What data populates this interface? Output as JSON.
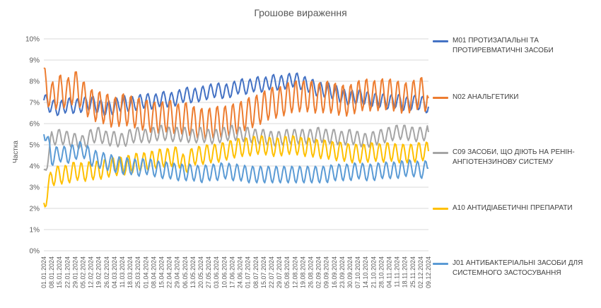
{
  "chart_data": {
    "type": "line",
    "title": "Грошове вираження",
    "xlabel": "",
    "ylabel": "Частка",
    "ylim": [
      0,
      10
    ],
    "y_ticks": [
      "0%",
      "1%",
      "2%",
      "3%",
      "4%",
      "5%",
      "6%",
      "7%",
      "8%",
      "9%",
      "10%"
    ],
    "x_tick_labels": [
      "01.01.2024",
      "08.01.2024",
      "15.01.2024",
      "22.01.2024",
      "29.01.2024",
      "05.02.2024",
      "12.02.2024",
      "19.02.2024",
      "26.02.2024",
      "04.03.2024",
      "11.03.2024",
      "18.03.2024",
      "25.03.2024",
      "01.04.2024",
      "08.04.2024",
      "15.04.2024",
      "22.04.2024",
      "29.04.2024",
      "06.05.2024",
      "13.05.2024",
      "20.05.2024",
      "27.05.2024",
      "03.06.2024",
      "10.06.2024",
      "17.06.2024",
      "24.06.2024",
      "01.07.2024",
      "08.07.2024",
      "15.07.2024",
      "22.07.2024",
      "29.07.2024",
      "05.08.2024",
      "12.08.2024",
      "19.08.2024",
      "26.08.2024",
      "02.09.2024",
      "09.09.2024",
      "16.09.2024",
      "23.09.2024",
      "30.09.2024",
      "07.10.2024",
      "14.10.2024",
      "21.10.2024",
      "28.10.2024",
      "04.11.2024",
      "11.11.2024",
      "18.11.2024",
      "25.11.2024",
      "02.12.2024",
      "09.12.2024"
    ],
    "grid": true,
    "legend_position": "right",
    "series": [
      {
        "name": "M01 ПРОТИЗАПАЛЬНІ ТА ПРОТИРЕВМАТИЧНІ ЗАСОБИ",
        "color": "#4472C4",
        "values": [
          7.1,
          6.8,
          6.7,
          6.9,
          6.8,
          6.9,
          7.0,
          6.8,
          6.7,
          6.8,
          7.0,
          6.9,
          7.0,
          7.1,
          7.0,
          7.2,
          7.1,
          7.2,
          7.4,
          7.3,
          7.4,
          7.5,
          7.6,
          7.5,
          7.6,
          7.8,
          7.7,
          7.9,
          7.8,
          8.0,
          7.9,
          8.0,
          8.1,
          7.9,
          7.8,
          7.6,
          7.6,
          7.5,
          7.3,
          7.2,
          7.3,
          7.2,
          7.1,
          7.1,
          7.0,
          7.1,
          6.9,
          7.0,
          7.0,
          6.8
        ]
      },
      {
        "name": "N02 АНАЛЬГЕТИКИ",
        "color": "#ED7D31",
        "values": [
          8.0,
          7.2,
          7.6,
          7.4,
          7.8,
          7.3,
          6.9,
          6.8,
          6.7,
          6.5,
          6.7,
          6.6,
          6.5,
          6.4,
          6.3,
          6.3,
          6.4,
          6.2,
          6.3,
          6.1,
          6.0,
          6.0,
          6.1,
          6.1,
          6.2,
          6.3,
          6.5,
          6.6,
          6.8,
          7.0,
          7.0,
          7.2,
          7.3,
          7.3,
          7.3,
          7.2,
          7.3,
          7.2,
          7.1,
          7.1,
          7.3,
          7.4,
          7.3,
          7.4,
          7.4,
          7.3,
          7.2,
          7.3,
          7.5,
          7.2
        ]
      },
      {
        "name": "C09 ЗАСОБИ, ЩО ДІЮТЬ НА РЕНІН-АНГІОТЕНЗИНОВУ СИСТЕМУ",
        "color": "#A5A5A5",
        "values": [
          3.5,
          5.3,
          5.4,
          5.3,
          5.2,
          5.1,
          5.4,
          5.5,
          5.3,
          5.3,
          5.2,
          5.4,
          5.5,
          5.4,
          5.5,
          5.6,
          5.5,
          5.5,
          5.5,
          5.4,
          5.5,
          5.4,
          5.4,
          5.5,
          5.6,
          5.5,
          5.5,
          5.4,
          5.4,
          5.3,
          5.3,
          5.4,
          5.4,
          5.4,
          5.4,
          5.5,
          5.4,
          5.4,
          5.3,
          5.4,
          5.3,
          5.2,
          5.3,
          5.4,
          5.5,
          5.6,
          5.6,
          5.5,
          5.5,
          5.6
        ]
      },
      {
        "name": "A10 АНТИДІАБЕТИЧНІ ПРЕПАРАТИ",
        "color": "#FFC000",
        "values": [
          2.2,
          3.5,
          3.6,
          3.6,
          3.8,
          3.7,
          3.8,
          3.8,
          3.9,
          4.0,
          4.0,
          4.1,
          4.2,
          4.2,
          4.3,
          4.4,
          4.4,
          4.5,
          4.0,
          4.5,
          4.5,
          4.6,
          4.6,
          4.7,
          4.8,
          4.9,
          4.9,
          5.0,
          5.0,
          4.9,
          4.9,
          5.0,
          5.0,
          4.9,
          4.9,
          4.8,
          4.8,
          4.7,
          4.7,
          4.6,
          4.6,
          4.6,
          4.7,
          4.6,
          4.7,
          4.6,
          4.6,
          4.6,
          4.7,
          4.7
        ]
      },
      {
        "name": "J01 АНТИБАКТЕРІАЛЬНІ ЗАСОБИ ДЛЯ СИСТЕМНОГО ЗАСТОСУВАННЯ",
        "color": "#5B9BD5",
        "values": [
          5.8,
          4.4,
          4.6,
          4.5,
          4.7,
          4.8,
          4.4,
          4.3,
          4.2,
          4.1,
          4.0,
          4.0,
          3.9,
          4.0,
          3.9,
          3.8,
          3.8,
          3.7,
          3.7,
          3.7,
          3.6,
          3.7,
          3.7,
          3.8,
          3.7,
          3.7,
          3.6,
          3.6,
          3.6,
          3.6,
          3.6,
          3.6,
          3.6,
          3.6,
          3.6,
          3.6,
          3.6,
          3.7,
          3.7,
          3.7,
          3.8,
          3.7,
          3.7,
          3.8,
          3.8,
          3.8,
          3.9,
          3.9,
          3.8,
          3.9
        ]
      }
    ]
  }
}
